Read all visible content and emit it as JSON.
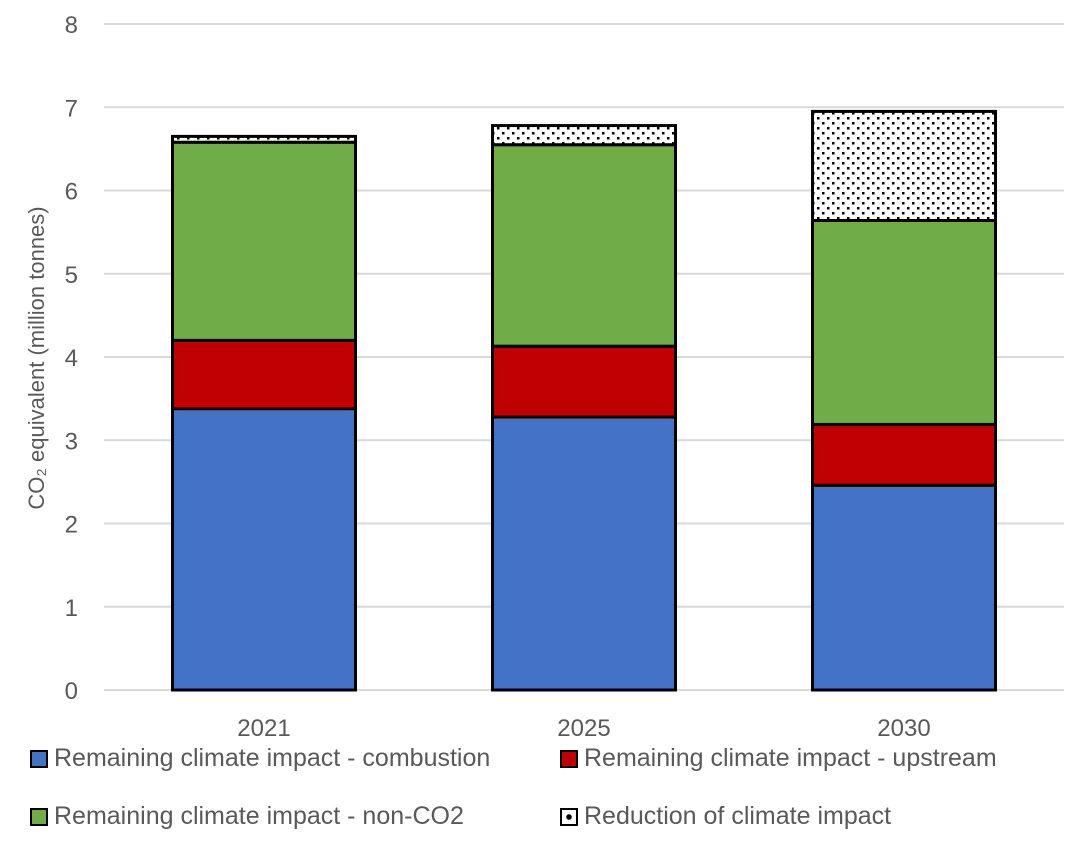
{
  "chart_data": {
    "type": "bar",
    "stacked": true,
    "categories": [
      "2021",
      "2025",
      "2030"
    ],
    "ylabel": "CO₂ equivalent (million tonnes)",
    "ylim": [
      0,
      8
    ],
    "yticks": [
      0,
      1,
      2,
      3,
      4,
      5,
      6,
      7,
      8
    ],
    "grid": true,
    "legend_position": "bottom",
    "series": [
      {
        "name": "Remaining climate impact - combustion",
        "values": [
          3.38,
          3.28,
          2.46
        ],
        "color": "#4472C4",
        "pattern": "solid"
      },
      {
        "name": "Remaining climate impact - upstream",
        "values": [
          0.82,
          0.85,
          0.73
        ],
        "color": "#C00000",
        "pattern": "solid"
      },
      {
        "name": "Remaining climate impact - non-CO2",
        "values": [
          2.38,
          2.42,
          2.45
        ],
        "color": "#70AD47",
        "pattern": "solid"
      },
      {
        "name": "Reduction of climate impact",
        "values": [
          0.07,
          0.23,
          1.31
        ],
        "color": "#ffffff",
        "pattern": "dots"
      }
    ]
  }
}
